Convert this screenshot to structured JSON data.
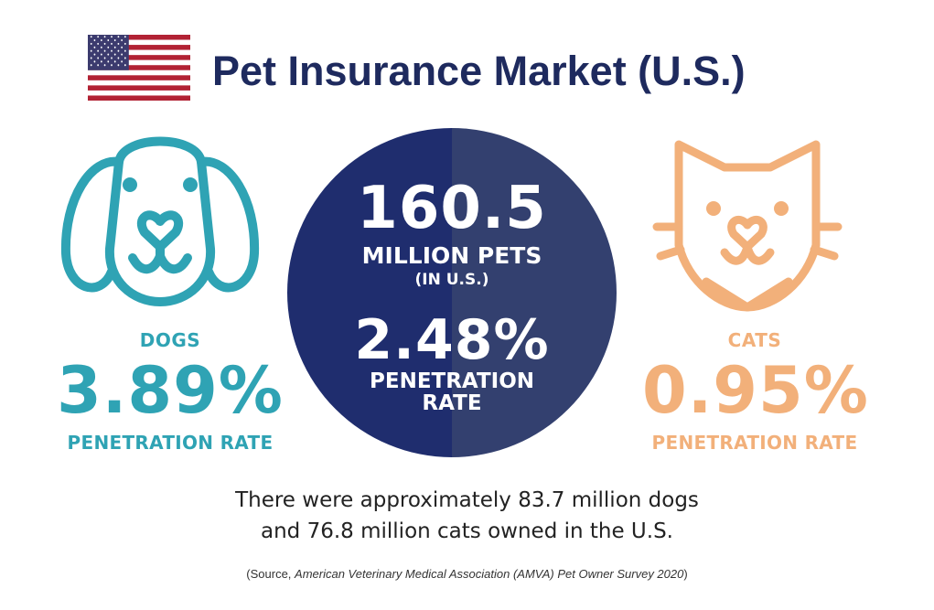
{
  "header": {
    "title": "Pet Insurance Market (U.S.)"
  },
  "dogs": {
    "label": "DOGS",
    "rate": "3.89%",
    "rate_label": "PENETRATION RATE",
    "color": "#2fa3b4",
    "icon": "dog-icon"
  },
  "cats": {
    "label": "CATS",
    "rate": "0.95%",
    "rate_label": "PENETRATION RATE",
    "color": "#f2b07a",
    "icon": "cat-icon"
  },
  "center": {
    "total": "160.5",
    "total_label": "MILLION PETS",
    "total_sub": "(IN U.S.)",
    "rate": "2.48%",
    "rate_label_1": "PENETRATION",
    "rate_label_2": "RATE",
    "color_left": "#1f2d6e",
    "color_right": "#33406f"
  },
  "statement": {
    "line1": "There were approximately 83.7 million dogs",
    "line2": "and 76.8 million cats owned in the U.S."
  },
  "source": {
    "prefix": "(Source, ",
    "title": "American Veterinary Medical Association (AMVA) Pet Owner Survey 2020",
    "suffix": ")"
  },
  "colors": {
    "title": "#1e2a5e",
    "flag_red": "#b22234",
    "flag_blue": "#3c3b6e"
  }
}
